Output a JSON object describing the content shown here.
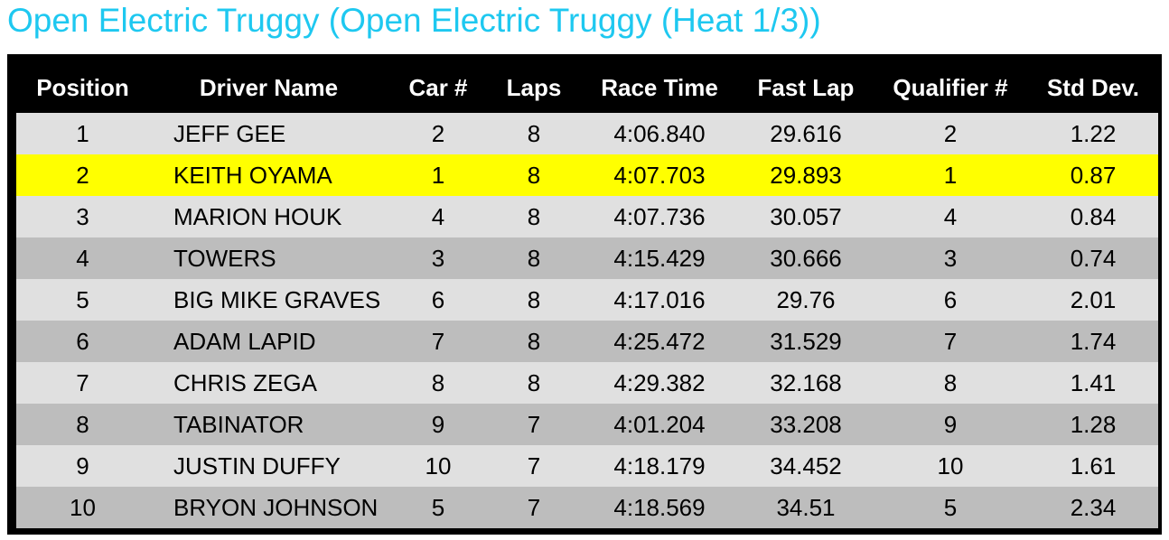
{
  "title": "Open Electric Truggy (Open Electric Truggy (Heat 1/3))",
  "table": {
    "headers": [
      "Position",
      "Driver Name",
      "Car #",
      "Laps",
      "Race Time",
      "Fast Lap",
      "Qualifier #",
      "Std Dev."
    ],
    "rows": [
      [
        "1",
        "JEFF GEE",
        "2",
        "8",
        "4:06.840",
        "29.616",
        "2",
        "1.22"
      ],
      [
        "2",
        "KEITH OYAMA",
        "1",
        "8",
        "4:07.703",
        "29.893",
        "1",
        "0.87"
      ],
      [
        "3",
        "MARION HOUK",
        "4",
        "8",
        "4:07.736",
        "30.057",
        "4",
        "0.84"
      ],
      [
        "4",
        "TOWERS",
        "3",
        "8",
        "4:15.429",
        "30.666",
        "3",
        "0.74"
      ],
      [
        "5",
        "BIG MIKE GRAVES",
        "6",
        "8",
        "4:17.016",
        "29.76",
        "6",
        "2.01"
      ],
      [
        "6",
        "ADAM LAPID",
        "7",
        "8",
        "4:25.472",
        "31.529",
        "7",
        "1.74"
      ],
      [
        "7",
        "CHRIS ZEGA",
        "8",
        "8",
        "4:29.382",
        "32.168",
        "8",
        "1.41"
      ],
      [
        "8",
        "TABINATOR",
        "9",
        "7",
        "4:01.204",
        "33.208",
        "9",
        "1.28"
      ],
      [
        "9",
        "JUSTIN DUFFY",
        "10",
        "7",
        "4:18.179",
        "34.452",
        "10",
        "1.61"
      ],
      [
        "10",
        "BRYON JOHNSON",
        "5",
        "7",
        "4:18.569",
        "34.51",
        "5",
        "2.34"
      ]
    ]
  }
}
